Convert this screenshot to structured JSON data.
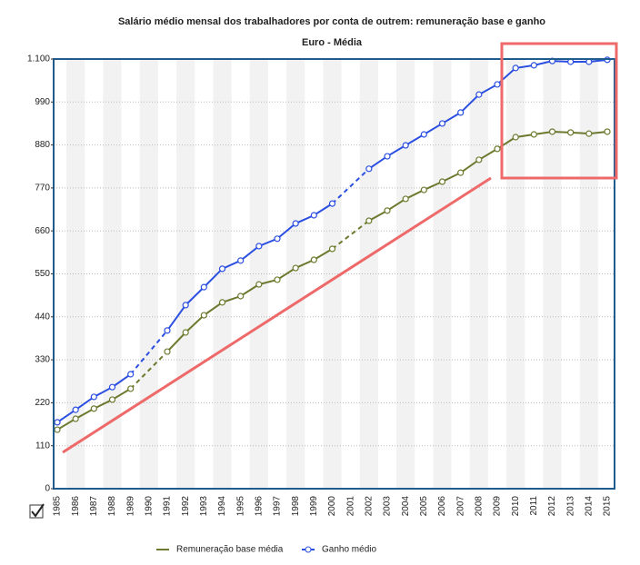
{
  "chart_data": {
    "type": "line",
    "title": "Salário médio mensal dos trabalhadores por conta de outrem: remuneração base e ganho",
    "subtitle": "Euro - Média",
    "categories": [
      "1985",
      "1986",
      "1987",
      "1988",
      "1989",
      "1990",
      "1991",
      "1992",
      "1993",
      "1994",
      "1995",
      "1996",
      "1997",
      "1998",
      "1999",
      "2000",
      "2001",
      "2002",
      "2003",
      "2004",
      "2005",
      "2006",
      "2007",
      "2008",
      "2009",
      "2010",
      "2011",
      "2012",
      "2013",
      "2014",
      "2015"
    ],
    "series": [
      {
        "name": "Remuneração base média",
        "color": "#6b7a2e",
        "values": [
          151,
          179,
          205,
          228,
          256,
          null,
          351,
          400,
          444,
          477,
          493,
          523,
          535,
          565,
          586,
          614,
          null,
          686,
          712,
          742,
          765,
          786,
          809,
          842,
          870,
          900,
          907,
          914,
          912,
          909,
          914
        ]
      },
      {
        "name": "Ganho médio",
        "color": "#2b4fe0",
        "values": [
          170,
          202,
          235,
          260,
          293,
          null,
          405,
          470,
          516,
          563,
          584,
          621,
          640,
          679,
          700,
          730,
          null,
          819,
          851,
          879,
          907,
          935,
          963,
          1009,
          1035,
          1077,
          1084,
          1095,
          1093,
          1093,
          1098
        ]
      }
    ],
    "ylim": [
      0,
      1100
    ],
    "yticks": [
      0,
      110,
      220,
      330,
      440,
      550,
      660,
      770,
      880,
      990,
      {
        "value": 1100,
        "label": "1.100"
      }
    ],
    "grid": true
  }
}
